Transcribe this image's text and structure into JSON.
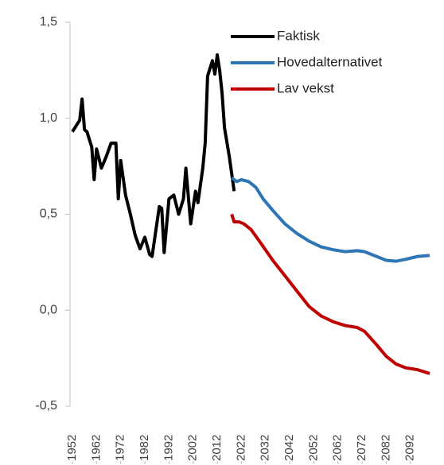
{
  "chart_data": {
    "type": "line",
    "xlim": [
      1951,
      2101
    ],
    "xticks": [
      1952,
      1962,
      1972,
      1982,
      1992,
      2002,
      2012,
      2022,
      2032,
      2042,
      2052,
      2062,
      2072,
      2082,
      2092
    ],
    "ylim": [
      -0.5,
      1.5
    ],
    "yticks": [
      {
        "value": 1.5,
        "label": "1,5"
      },
      {
        "value": 1.0,
        "label": "1,0"
      },
      {
        "value": 0.5,
        "label": "0,5"
      },
      {
        "value": 0.0,
        "label": "0,0"
      },
      {
        "value": -0.5,
        "label": "-0,5"
      }
    ],
    "grid": false,
    "legend": "top-right",
    "series": [
      {
        "name": "Faktisk",
        "color": "#000000",
        "x": [
          1952,
          1955,
          1956,
          1957,
          1958,
          1960,
          1961,
          1962,
          1964,
          1966,
          1968,
          1970,
          1971,
          1972,
          1974,
          1976,
          1978,
          1980,
          1982,
          1984,
          1985,
          1988,
          1989,
          1990,
          1992,
          1994,
          1996,
          1998,
          1999,
          2001,
          2003,
          2004,
          2006,
          2007,
          2008,
          2010,
          2011,
          2012,
          2013,
          2014,
          2015,
          2017,
          2019
        ],
        "values": [
          0.93,
          0.99,
          1.1,
          0.94,
          0.93,
          0.85,
          0.68,
          0.84,
          0.74,
          0.8,
          0.87,
          0.87,
          0.58,
          0.78,
          0.6,
          0.5,
          0.39,
          0.32,
          0.38,
          0.29,
          0.28,
          0.54,
          0.53,
          0.3,
          0.58,
          0.6,
          0.5,
          0.58,
          0.74,
          0.45,
          0.62,
          0.56,
          0.74,
          0.87,
          1.22,
          1.3,
          1.23,
          1.33,
          1.25,
          1.13,
          0.95,
          0.8,
          0.62
        ]
      },
      {
        "name": "Hovedalternativet",
        "color": "#2e75b6",
        "x": [
          2018,
          2020,
          2022,
          2025,
          2028,
          2031,
          2035,
          2040,
          2045,
          2050,
          2055,
          2060,
          2065,
          2070,
          2073,
          2078,
          2082,
          2086,
          2090,
          2095,
          2100
        ],
        "values": [
          0.69,
          0.67,
          0.68,
          0.67,
          0.64,
          0.58,
          0.52,
          0.45,
          0.4,
          0.36,
          0.33,
          0.315,
          0.305,
          0.31,
          0.305,
          0.28,
          0.26,
          0.255,
          0.265,
          0.28,
          0.285
        ]
      },
      {
        "name": "Lav vekst",
        "color": "#c00000",
        "x": [
          2018,
          2019,
          2021,
          2023,
          2026,
          2030,
          2035,
          2040,
          2045,
          2050,
          2055,
          2060,
          2065,
          2070,
          2073,
          2078,
          2082,
          2086,
          2090,
          2095,
          2100
        ],
        "values": [
          0.5,
          0.46,
          0.46,
          0.45,
          0.42,
          0.35,
          0.26,
          0.18,
          0.1,
          0.02,
          -0.03,
          -0.06,
          -0.08,
          -0.09,
          -0.11,
          -0.18,
          -0.24,
          -0.28,
          -0.3,
          -0.31,
          -0.33
        ]
      }
    ]
  }
}
